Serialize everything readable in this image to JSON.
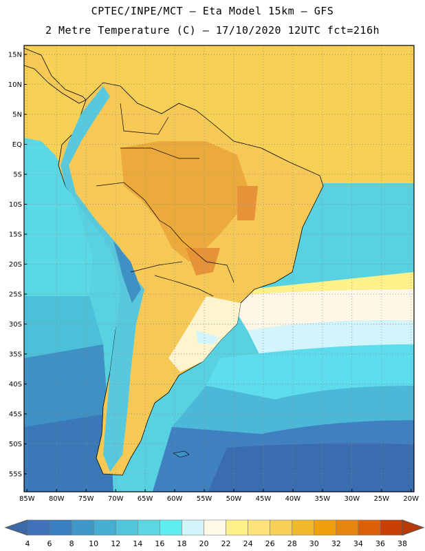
{
  "header": {
    "title_line1": "CPTEC/INPE/MCT –  Eta Model 15km – GFS",
    "title_line2": "2 Metre Temperature (C) – 17/10/2020 12UTC fct=216h"
  },
  "map": {
    "lat_labels": [
      "15N",
      "10N",
      "5N",
      "EQ",
      "5S",
      "10S",
      "15S",
      "20S",
      "25S",
      "30S",
      "35S",
      "40S",
      "45S",
      "50S",
      "55S"
    ],
    "lat_values": [
      15,
      10,
      5,
      0,
      -5,
      -10,
      -15,
      -20,
      -25,
      -30,
      -35,
      -40,
      -45,
      -50,
      -55
    ],
    "lon_labels": [
      "85W",
      "80W",
      "75W",
      "70W",
      "65W",
      "60W",
      "55W",
      "50W",
      "45W",
      "40W",
      "35W",
      "30W",
      "25W",
      "20W"
    ],
    "lon_values": [
      -85,
      -80,
      -75,
      -70,
      -65,
      -60,
      -55,
      -50,
      -45,
      -40,
      -35,
      -30,
      -25,
      -20
    ],
    "extent": {
      "lon_min": -85.5,
      "lon_max": -19.5,
      "lat_min": -58,
      "lat_max": 16.5
    }
  },
  "colorbar": {
    "labels": [
      "4",
      "6",
      "8",
      "10",
      "12",
      "14",
      "16",
      "18",
      "20",
      "22",
      "24",
      "26",
      "28",
      "30",
      "32",
      "34",
      "36",
      "38"
    ],
    "colors": [
      "#3f72b8",
      "#3a80c0",
      "#3f98c8",
      "#45aed2",
      "#52c4dc",
      "#5cd6e3",
      "#5ceef0",
      "#d2f5fb",
      "#fff8e6",
      "#fff08a",
      "#fde27a",
      "#f8d055",
      "#efb82d",
      "#f0a00a",
      "#e6860e",
      "#dc6008",
      "#c84006"
    ],
    "under_color": "#3a6aa8",
    "over_color": "#b83a06"
  }
}
